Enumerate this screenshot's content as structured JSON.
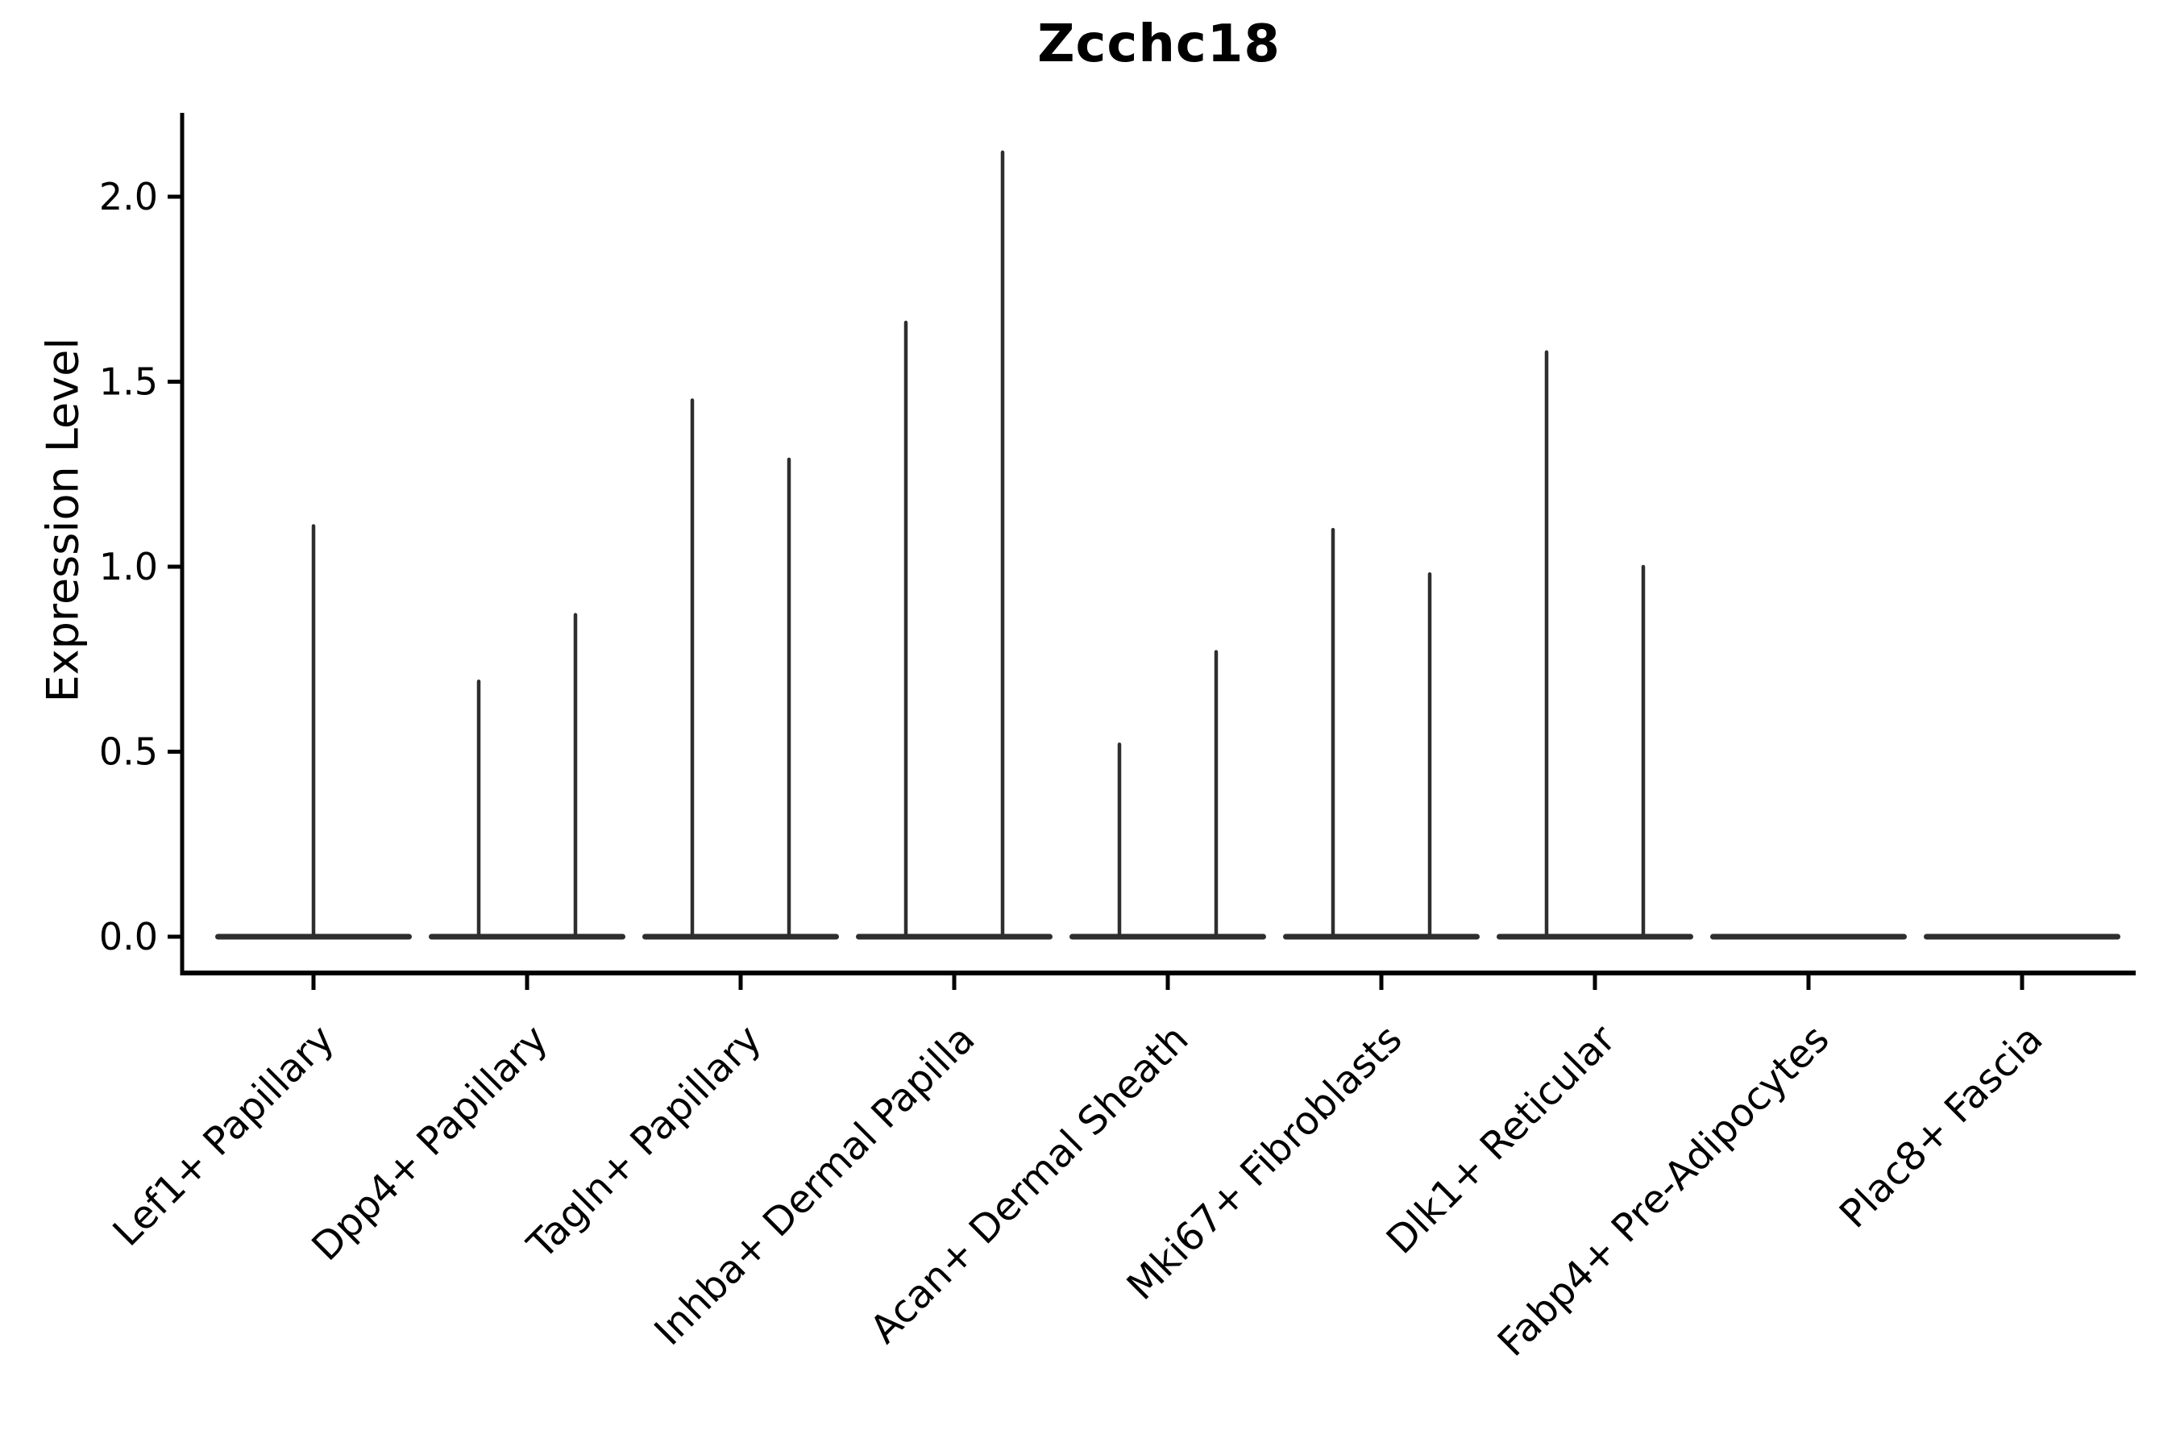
{
  "chart_data": {
    "type": "violin",
    "title": "Zcchc18",
    "ylabel": "Expression Level",
    "xlabel": "",
    "ylim": [
      -0.1,
      2.23
    ],
    "yticks": [
      "0.0",
      "0.5",
      "1.0",
      "1.5",
      "2.0"
    ],
    "ytick_values": [
      0.0,
      0.5,
      1.0,
      1.5,
      2.0
    ],
    "grid": false,
    "legend": "none",
    "categories": [
      "Lef1+ Papillary",
      "Dpp4+ Papillary",
      "Tagln+ Papillary",
      "Inhba+ Dermal Papilla",
      "Acan+ Dermal Sheath",
      "Mki67+ Fibroblasts",
      "Dlk1+ Reticular",
      "Fabp4+ Pre-Adipocytes",
      "Plac8+ Fascia"
    ],
    "violins": [
      {
        "category": "Lef1+ Papillary",
        "baseline": 0.0,
        "spikes": [
          {
            "pos": "center",
            "max": 1.11
          }
        ]
      },
      {
        "category": "Dpp4+ Papillary",
        "baseline": 0.0,
        "spikes": [
          {
            "pos": "left",
            "max": 0.69
          },
          {
            "pos": "right",
            "max": 0.87
          }
        ]
      },
      {
        "category": "Tagln+ Papillary",
        "baseline": 0.0,
        "spikes": [
          {
            "pos": "left",
            "max": 1.45
          },
          {
            "pos": "right",
            "max": 1.29
          }
        ]
      },
      {
        "category": "Inhba+ Dermal Papilla",
        "baseline": 0.0,
        "spikes": [
          {
            "pos": "left",
            "max": 1.66
          },
          {
            "pos": "right",
            "max": 2.12
          }
        ]
      },
      {
        "category": "Acan+ Dermal Sheath",
        "baseline": 0.0,
        "spikes": [
          {
            "pos": "left",
            "max": 0.52
          },
          {
            "pos": "right",
            "max": 0.77
          }
        ]
      },
      {
        "category": "Mki67+ Fibroblasts",
        "baseline": 0.0,
        "spikes": [
          {
            "pos": "left",
            "max": 1.1
          },
          {
            "pos": "right",
            "max": 0.98
          }
        ]
      },
      {
        "category": "Dlk1+ Reticular",
        "baseline": 0.0,
        "spikes": [
          {
            "pos": "left",
            "max": 1.58
          },
          {
            "pos": "right",
            "max": 1.0
          }
        ]
      },
      {
        "category": "Fabp4+ Pre-Adipocytes",
        "baseline": 0.0,
        "spikes": []
      },
      {
        "category": "Plac8+ Fascia",
        "baseline": 0.0,
        "spikes": []
      }
    ],
    "colors": {
      "axis": "#000000",
      "text": "#000000",
      "violin": "#2e2e2e",
      "background": "#ffffff"
    }
  }
}
